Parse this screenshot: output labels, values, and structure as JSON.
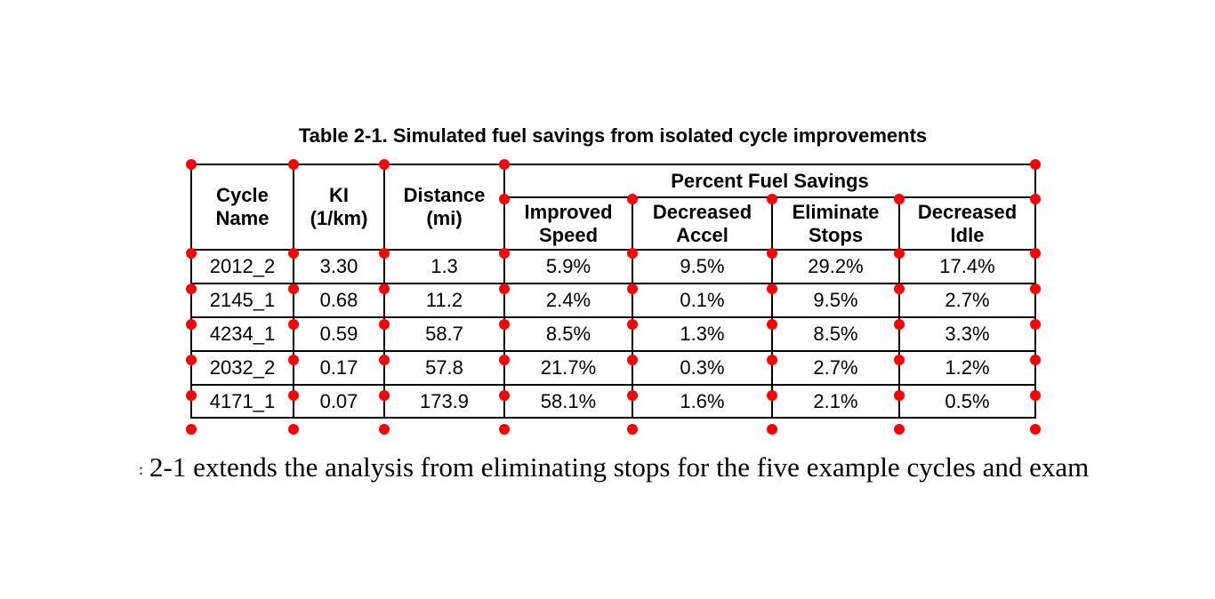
{
  "page": {
    "table_caption": "Table 2-1. Simulated fuel savings from isolated cycle improvements",
    "body_text": {
      "left_clipped_fragment": ":",
      "text": "2-1 extends the analysis from eliminating stops for the five example cycles and exam"
    }
  },
  "table": {
    "headers": {
      "cycle_name": "Cycle\nName",
      "ki": "KI\n(1/km)",
      "distance": "Distance\n(mi)",
      "group": "Percent Fuel Savings",
      "sub": [
        "Improved\nSpeed",
        "Decreased\nAccel",
        "Eliminate\nStops",
        "Decreased\nIdle"
      ]
    },
    "rows": [
      [
        "2012_2",
        "3.30",
        "1.3",
        "5.9%",
        "9.5%",
        "29.2%",
        "17.4%"
      ],
      [
        "2145_1",
        "0.68",
        "11.2",
        "2.4%",
        "0.1%",
        "9.5%",
        "2.7%"
      ],
      [
        "4234_1",
        "0.59",
        "58.7",
        "8.5%",
        "1.3%",
        "8.5%",
        "3.3%"
      ],
      [
        "2032_2",
        "0.17",
        "57.8",
        "21.7%",
        "0.3%",
        "2.7%",
        "1.2%"
      ],
      [
        "4171_1",
        "0.07",
        "173.9",
        "58.1%",
        "1.6%",
        "2.1%",
        "0.5%"
      ]
    ]
  },
  "annotations": {
    "corner_dot_color": "#ff0000",
    "line_color": "#000000"
  }
}
